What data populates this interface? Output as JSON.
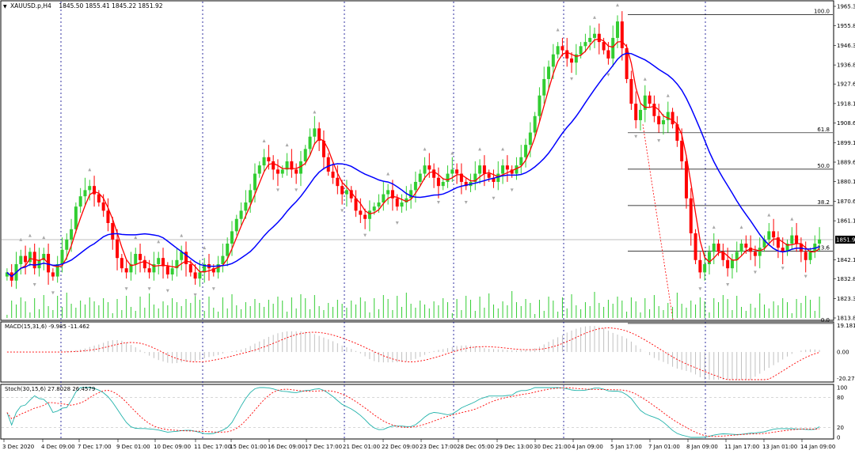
{
  "header": {
    "symbol": "XAUUSD.p,H4",
    "ohlc": "1845.50 1855.41 1845.22 1851.92"
  },
  "indicators": {
    "macd_label": "MACD(15,31,6) -9.985 -11.462",
    "stoch_label": "Stoch(30,15,6) 27.8028 26.4579"
  },
  "price_axis": [
    "1965.35",
    "1955.85",
    "1946.35",
    "1936.85",
    "1927.60",
    "1918.10",
    "1908.60",
    "1899.10",
    "1889.60",
    "1880.10",
    "1870.60",
    "1861.10",
    "1851.92",
    "1842.10",
    "1832.85",
    "1823.35",
    "1813.85"
  ],
  "current_price": "1851.92",
  "fib_levels": [
    {
      "label": "100.0",
      "price": 1961.3
    },
    {
      "label": "61.8",
      "price": 1903.9
    },
    {
      "label": "50.0",
      "price": 1886.2
    },
    {
      "label": "38.2",
      "price": 1868.5
    },
    {
      "label": "23.6",
      "price": 1846.4
    },
    {
      "label": "0.0",
      "price": 1811.2
    }
  ],
  "macd_axis": [
    "19.181",
    "0.00",
    "-20.272"
  ],
  "stoch_axis": [
    "100",
    "80",
    "20",
    "0"
  ],
  "time_axis": [
    "3 Dec 2020",
    "4 Dec 09:00",
    "7 Dec 17:00",
    "9 Dec 01:00",
    "10 Dec 09:00",
    "11 Dec 17:00",
    "15 Dec 01:00",
    "16 Dec 09:00",
    "17 Dec 17:00",
    "21 Dec 01:00",
    "22 Dec 09:00",
    "23 Dec 17:00",
    "28 Dec 05:00",
    "29 Dec 13:00",
    "30 Dec 21:00",
    "4 Jan 09:00",
    "5 Jan 17:00",
    "7 Jan 01:00",
    "8 Jan 09:00",
    "11 Jan 17:00",
    "13 Jan 01:00",
    "14 Jan 09:00"
  ],
  "colors": {
    "bull": "#32cd32",
    "bear": "#ff0000",
    "ma_fast": "#ff0000",
    "ma_slow": "#0000ff",
    "stoch_main": "#20b2aa",
    "stoch_signal": "#ff0000",
    "grid_vertical": "#00008b",
    "fib": "#000000"
  },
  "chart_data": {
    "type": "candlestick",
    "symbol": "XAUUSD.p",
    "timeframe": "H4",
    "ylim": [
      1813.85,
      1965.35
    ],
    "closes": [
      1836,
      1832,
      1840,
      1844,
      1841,
      1846,
      1838,
      1842,
      1845,
      1836,
      1834,
      1840,
      1847,
      1852,
      1857,
      1868,
      1873,
      1876,
      1878,
      1874,
      1870,
      1866,
      1860,
      1852,
      1843,
      1838,
      1836,
      1840,
      1845,
      1842,
      1838,
      1836,
      1840,
      1843,
      1839,
      1835,
      1838,
      1842,
      1846,
      1840,
      1836,
      1833,
      1836,
      1840,
      1838,
      1836,
      1840,
      1844,
      1850,
      1856,
      1862,
      1866,
      1870,
      1876,
      1884,
      1888,
      1892,
      1890,
      1886,
      1884,
      1886,
      1890,
      1886,
      1884,
      1890,
      1896,
      1902,
      1906,
      1900,
      1892,
      1885,
      1882,
      1878,
      1874,
      1876,
      1872,
      1866,
      1864,
      1862,
      1866,
      1868,
      1870,
      1874,
      1876,
      1872,
      1868,
      1870,
      1872,
      1876,
      1880,
      1884,
      1888,
      1886,
      1882,
      1878,
      1880,
      1884,
      1886,
      1884,
      1880,
      1878,
      1880,
      1884,
      1888,
      1884,
      1882,
      1880,
      1884,
      1888,
      1886,
      1884,
      1888,
      1892,
      1898,
      1904,
      1912,
      1922,
      1930,
      1936,
      1942,
      1946,
      1944,
      1940,
      1938,
      1942,
      1946,
      1948,
      1950,
      1952,
      1948,
      1944,
      1940,
      1950,
      1958,
      1945,
      1930,
      1918,
      1910,
      1915,
      1922,
      1918,
      1912,
      1908,
      1910,
      1914,
      1908,
      1900,
      1890,
      1872,
      1855,
      1842,
      1836,
      1840,
      1846,
      1850,
      1846,
      1842,
      1838,
      1842,
      1846,
      1850,
      1848,
      1846,
      1844,
      1848,
      1852,
      1856,
      1853,
      1848,
      1846,
      1850,
      1854,
      1850,
      1846,
      1842,
      1846,
      1850,
      1852
    ]
  }
}
